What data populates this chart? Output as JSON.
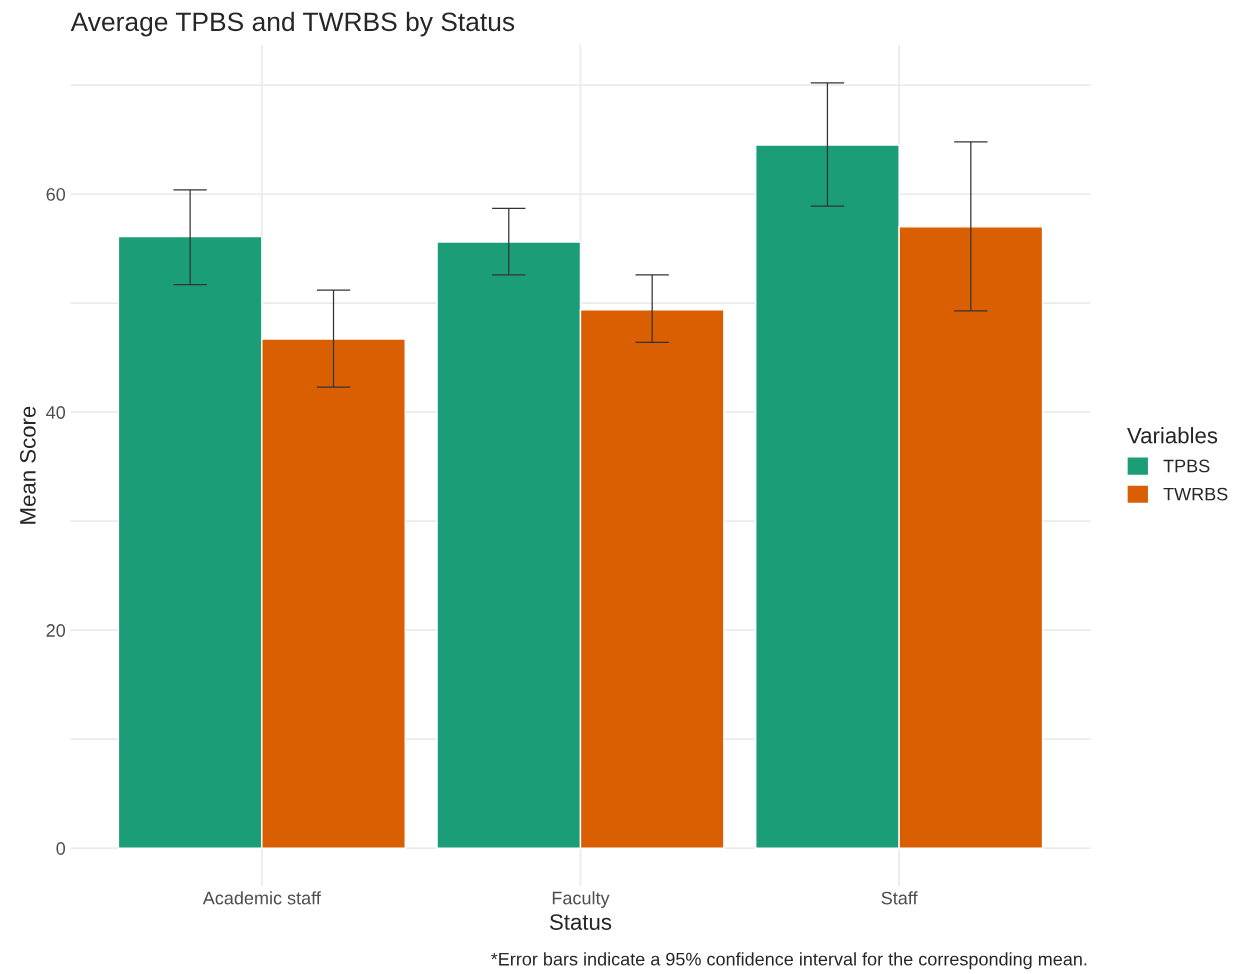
{
  "chart_data": {
    "type": "bar",
    "title": "Average TPBS and TWRBS by Status",
    "xlabel": "Status",
    "ylabel": "Mean Score",
    "legend_title": "Variables",
    "categories": [
      "Academic staff",
      "Faculty",
      "Staff"
    ],
    "series": [
      {
        "name": "TPBS",
        "color": "#1b9e77",
        "values": [
          56.1,
          55.6,
          64.5
        ],
        "errors": [
          [
            51.7,
            60.4
          ],
          [
            52.6,
            58.7
          ],
          [
            58.9,
            70.2
          ]
        ]
      },
      {
        "name": "TWRBS",
        "color": "#d95f02",
        "values": [
          46.7,
          49.4,
          57.0
        ],
        "errors": [
          [
            42.3,
            51.2
          ],
          [
            46.4,
            52.6
          ],
          [
            49.3,
            64.8
          ]
        ]
      }
    ],
    "ylim": [
      -3.5,
      73.7
    ],
    "yticks": [
      0,
      {
        "value": 10,
        "label": null
      },
      20,
      {
        "value": 30,
        "label": null
      },
      40,
      {
        "value": 50,
        "label": null
      },
      60,
      {
        "value": 70,
        "label": null
      }
    ],
    "grid": true,
    "legend": "right",
    "annotations": [
      "*Error bars indicate a 95% confidence interval for the corresponding mean."
    ]
  }
}
